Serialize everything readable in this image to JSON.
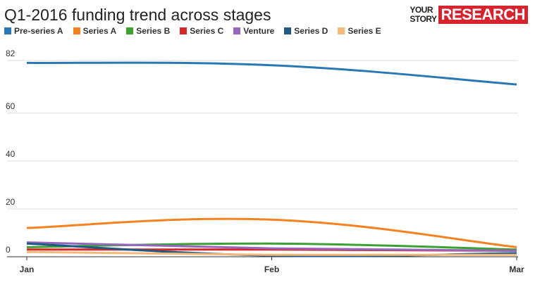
{
  "title": "Q1-2016 funding trend across stages",
  "logo": {
    "line1": "YOUR",
    "line2": "STORY",
    "badge": "RESEARCH"
  },
  "chart_data": {
    "type": "line",
    "title": "Q1-2016 funding trend across stages",
    "categories": [
      "Jan",
      "Feb",
      "Mar"
    ],
    "y_ticks": [
      0,
      20,
      40,
      60,
      82
    ],
    "ylim": [
      0,
      82
    ],
    "grid": true,
    "legend_position": "top",
    "series": [
      {
        "name": "Pre-series A",
        "color": "#2a78b2",
        "values": [
          81,
          80,
          72
        ]
      },
      {
        "name": "Series A",
        "color": "#f58220",
        "values": [
          12,
          15.5,
          4
        ]
      },
      {
        "name": "Series B",
        "color": "#3da035",
        "values": [
          4,
          5.5,
          3
        ]
      },
      {
        "name": "Series C",
        "color": "#d62728",
        "values": [
          3,
          3,
          2.5
        ]
      },
      {
        "name": "Venture",
        "color": "#9467bd",
        "values": [
          6,
          3.5,
          2.5
        ]
      },
      {
        "name": "Series D",
        "color": "#1f5a85",
        "values": [
          5.5,
          0.5,
          1.5
        ]
      },
      {
        "name": "Series E",
        "color": "#f4b97a",
        "values": [
          2,
          0.8,
          0.8
        ]
      }
    ]
  }
}
